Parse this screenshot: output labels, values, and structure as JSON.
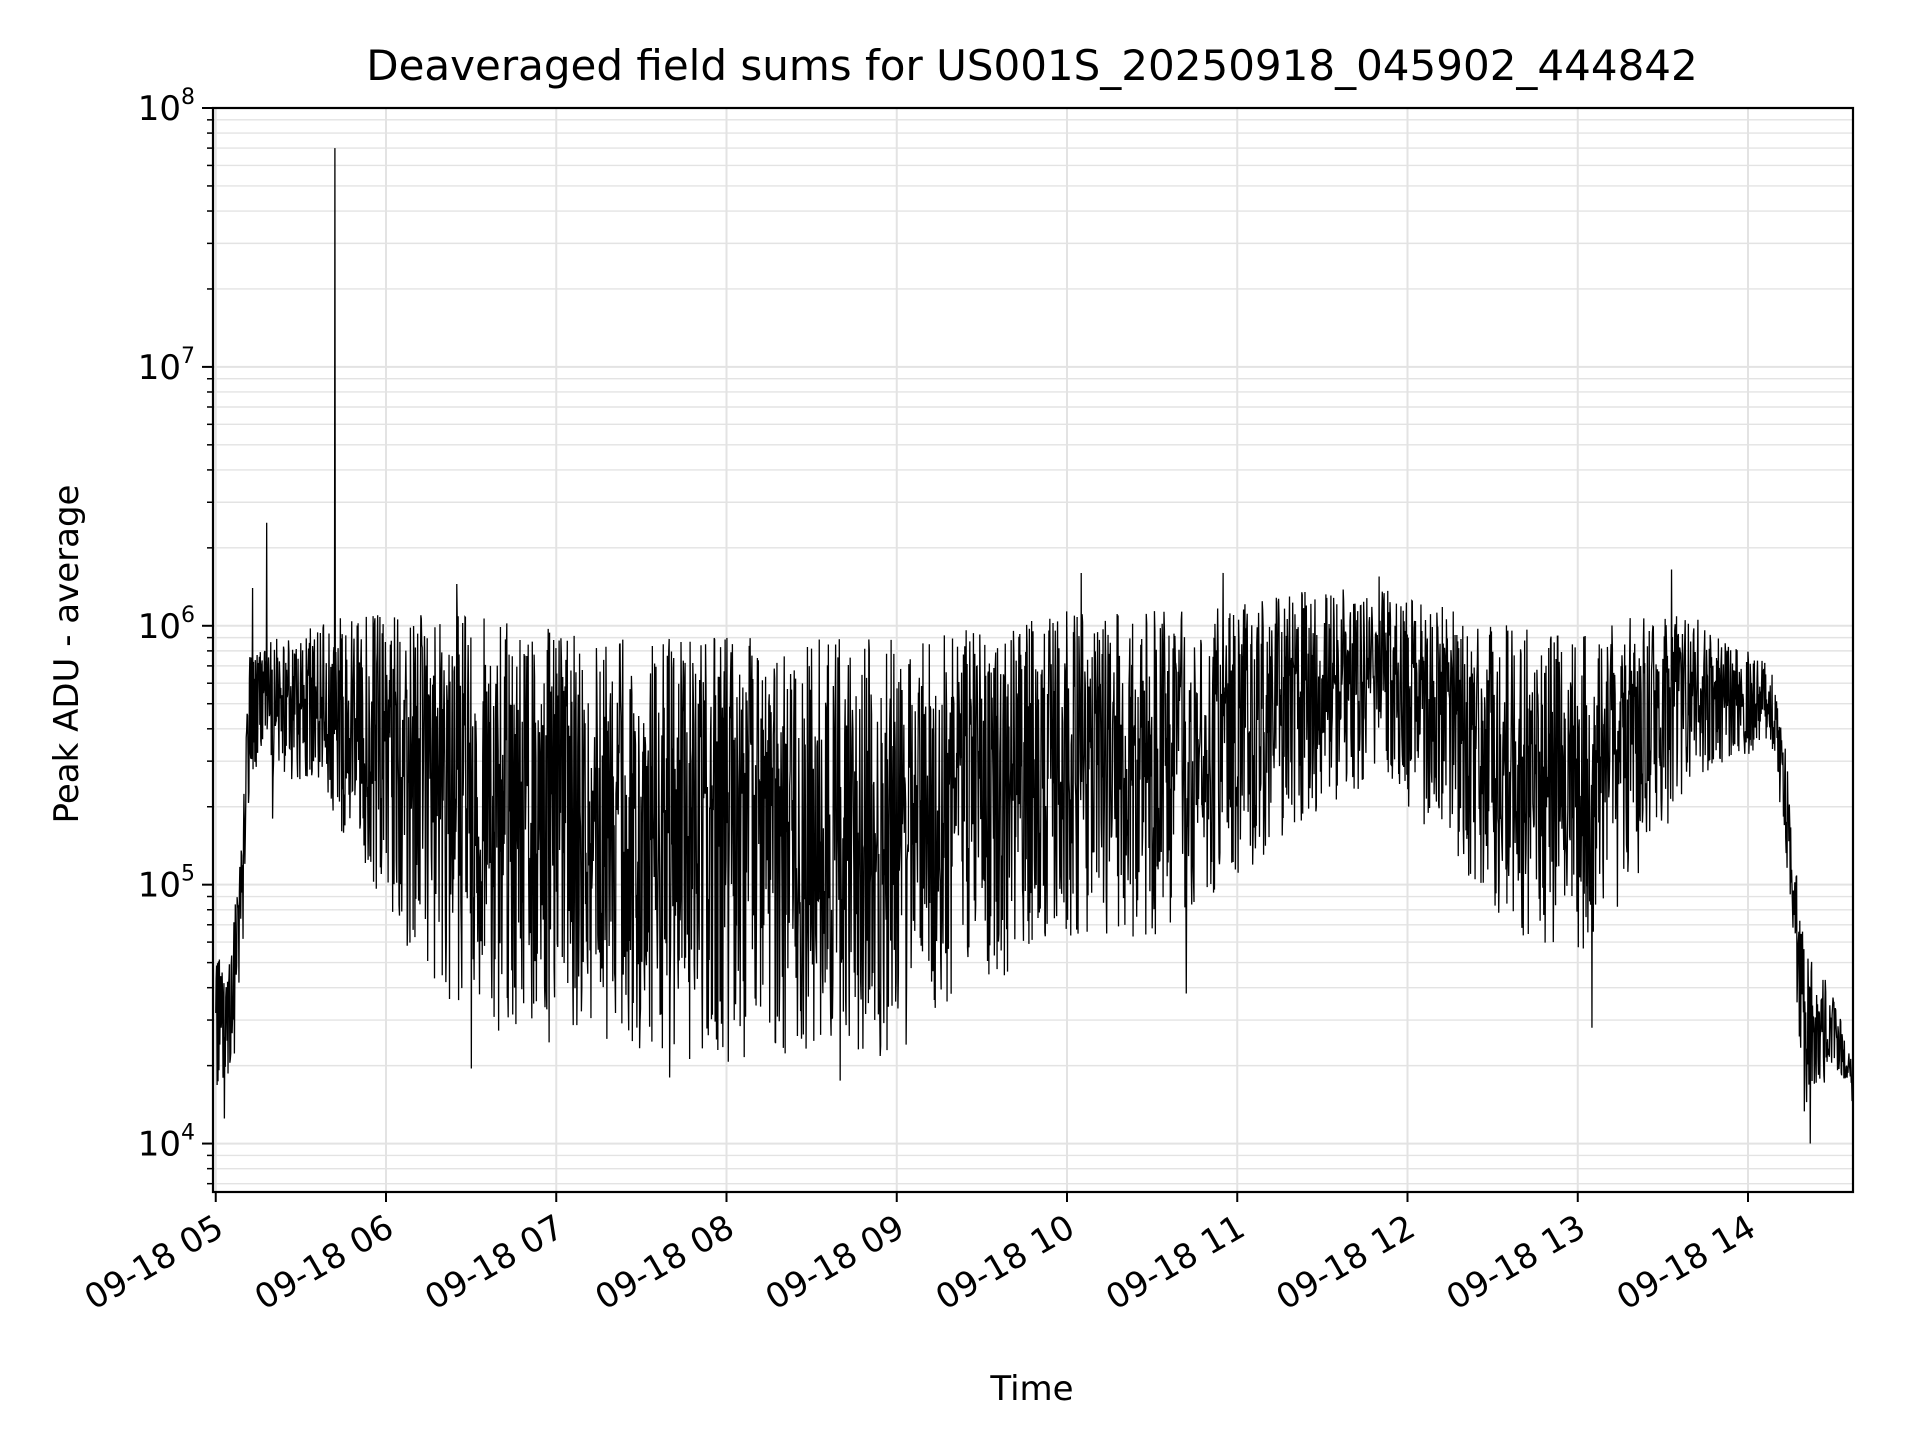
{
  "chart_data": {
    "type": "line",
    "title": "Deaveraged field sums for US001S_20250918_045902_444842",
    "xlabel": "Time",
    "ylabel": "Peak ADU - average",
    "y_scale": "log",
    "ylim": [
      6500,
      100000000
    ],
    "xlim": [
      "2025-09-18 04:59:02",
      "2025-09-18 14:37:00"
    ],
    "grid": true,
    "legend": "none",
    "line_color": "#000000",
    "grid_color": "#e3e3e3",
    "x_ticks": [
      {
        "time": "2025-09-18 05:00",
        "label": "09-18 05"
      },
      {
        "time": "2025-09-18 06:00",
        "label": "09-18 06"
      },
      {
        "time": "2025-09-18 07:00",
        "label": "09-18 07"
      },
      {
        "time": "2025-09-18 08:00",
        "label": "09-18 08"
      },
      {
        "time": "2025-09-18 09:00",
        "label": "09-18 09"
      },
      {
        "time": "2025-09-18 10:00",
        "label": "09-18 10"
      },
      {
        "time": "2025-09-18 11:00",
        "label": "09-18 11"
      },
      {
        "time": "2025-09-18 12:00",
        "label": "09-18 12"
      },
      {
        "time": "2025-09-18 13:00",
        "label": "09-18 13"
      },
      {
        "time": "2025-09-18 14:00",
        "label": "09-18 14"
      }
    ],
    "y_ticks": [
      {
        "value": 10000,
        "base": "10",
        "exp": "4"
      },
      {
        "value": 100000,
        "base": "10",
        "exp": "5"
      },
      {
        "value": 1000000,
        "base": "10",
        "exp": "6"
      },
      {
        "value": 10000000,
        "base": "10",
        "exp": "7"
      },
      {
        "value": 100000000,
        "base": "10",
        "exp": "8"
      }
    ],
    "envelope": [
      {
        "time": "2025-09-18 05:00",
        "low": 15000,
        "high": 55000
      },
      {
        "time": "2025-09-18 05:05",
        "low": 15000,
        "high": 50000
      },
      {
        "time": "2025-09-18 05:09",
        "low": 40000,
        "high": 150000
      },
      {
        "time": "2025-09-18 05:12",
        "low": 250000,
        "high": 800000
      },
      {
        "time": "2025-09-18 05:20",
        "low": 250000,
        "high": 900000
      },
      {
        "time": "2025-09-18 05:35",
        "low": 250000,
        "high": 1000000
      },
      {
        "time": "2025-09-18 05:45",
        "low": 150000,
        "high": 1100000
      },
      {
        "time": "2025-09-18 05:55",
        "low": 100000,
        "high": 1100000
      },
      {
        "time": "2025-09-18 06:10",
        "low": 50000,
        "high": 1100000
      },
      {
        "time": "2025-09-18 06:30",
        "low": 28000,
        "high": 1100000
      },
      {
        "time": "2025-09-18 07:00",
        "low": 24000,
        "high": 1000000
      },
      {
        "time": "2025-09-18 07:30",
        "low": 22000,
        "high": 900000
      },
      {
        "time": "2025-09-18 08:00",
        "low": 20000,
        "high": 900000
      },
      {
        "time": "2025-09-18 08:30",
        "low": 20000,
        "high": 900000
      },
      {
        "time": "2025-09-18 09:00",
        "low": 22000,
        "high": 950000
      },
      {
        "time": "2025-09-18 09:30",
        "low": 40000,
        "high": 1000000
      },
      {
        "time": "2025-09-18 10:00",
        "low": 60000,
        "high": 1150000
      },
      {
        "time": "2025-09-18 10:30",
        "low": 60000,
        "high": 1150000
      },
      {
        "time": "2025-09-18 11:00",
        "low": 100000,
        "high": 1200000
      },
      {
        "time": "2025-09-18 11:30",
        "low": 200000,
        "high": 1400000
      },
      {
        "time": "2025-09-18 11:50",
        "low": 250000,
        "high": 1400000
      },
      {
        "time": "2025-09-18 12:10",
        "low": 150000,
        "high": 1200000
      },
      {
        "time": "2025-09-18 12:40",
        "low": 60000,
        "high": 1000000
      },
      {
        "time": "2025-09-18 13:00",
        "low": 50000,
        "high": 900000
      },
      {
        "time": "2025-09-18 13:20",
        "low": 100000,
        "high": 1100000
      },
      {
        "time": "2025-09-18 13:40",
        "low": 250000,
        "high": 1100000
      },
      {
        "time": "2025-09-18 14:08",
        "low": 350000,
        "high": 700000
      },
      {
        "time": "2025-09-18 14:13",
        "low": 150000,
        "high": 350000
      },
      {
        "time": "2025-09-18 14:20",
        "low": 12000,
        "high": 55000
      },
      {
        "time": "2025-09-18 14:30",
        "low": 20000,
        "high": 40000
      },
      {
        "time": "2025-09-18 14:37",
        "low": 13000,
        "high": 20000
      }
    ],
    "spikes": [
      {
        "time": "2025-09-18 05:03",
        "value": 12500
      },
      {
        "time": "2025-09-18 05:13",
        "value": 1400000
      },
      {
        "time": "2025-09-18 05:18",
        "value": 2500000
      },
      {
        "time": "2025-09-18 05:20",
        "value": 180000
      },
      {
        "time": "2025-09-18 05:42",
        "value": 70000000
      },
      {
        "time": "2025-09-18 06:25",
        "value": 1450000
      },
      {
        "time": "2025-09-18 06:30",
        "value": 19500
      },
      {
        "time": "2025-09-18 07:40",
        "value": 18000
      },
      {
        "time": "2025-09-18 08:40",
        "value": 17500
      },
      {
        "time": "2025-09-18 10:05",
        "value": 1600000
      },
      {
        "time": "2025-09-18 10:42",
        "value": 38000
      },
      {
        "time": "2025-09-18 10:55",
        "value": 1600000
      },
      {
        "time": "2025-09-18 11:50",
        "value": 1550000
      },
      {
        "time": "2025-09-18 13:05",
        "value": 28000
      },
      {
        "time": "2025-09-18 13:33",
        "value": 1650000
      },
      {
        "time": "2025-09-18 14:22",
        "value": 10000
      }
    ]
  }
}
